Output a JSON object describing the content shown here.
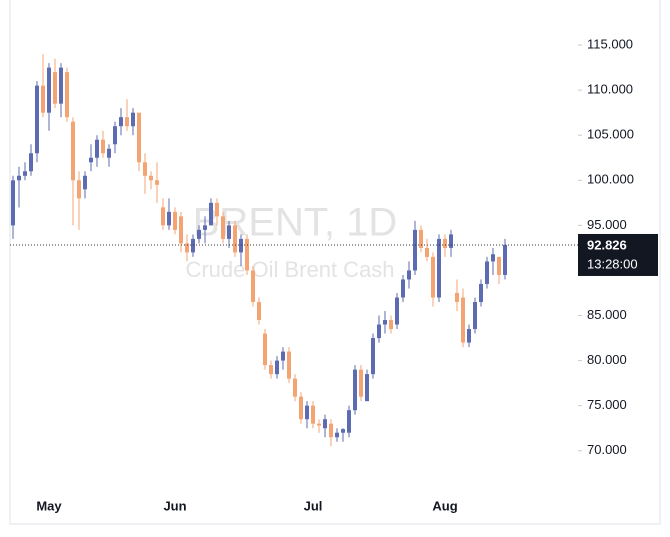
{
  "chart_data": {
    "type": "candlestick",
    "watermark_title": "BRENT, 1D",
    "watermark_subtitle": "Crude Oil Brent Cash",
    "up_color": "#5d6cb2",
    "down_color": "#f4a373",
    "categories": [
      null,
      null,
      null,
      null,
      null,
      null,
      "May",
      null,
      null,
      null,
      null,
      null,
      null,
      null,
      null,
      null,
      null,
      null,
      null,
      null,
      null,
      null,
      null,
      null,
      null,
      null,
      null,
      "Jun",
      null,
      null,
      null,
      null,
      null,
      null,
      null,
      null,
      null,
      null,
      null,
      null,
      null,
      null,
      null,
      null,
      null,
      null,
      null,
      null,
      null,
      null,
      "Jul",
      null,
      null,
      null,
      null,
      null,
      null,
      null,
      null,
      null,
      null,
      null,
      null,
      null,
      null,
      null,
      null,
      null,
      null,
      null,
      null,
      null,
      "Aug",
      null,
      null,
      null,
      null,
      null,
      null,
      null,
      null,
      null,
      null
    ],
    "open": [
      95,
      100,
      100.5,
      101,
      103,
      110.5,
      107.5,
      112,
      108.5,
      112,
      106.5,
      100,
      99,
      102,
      102.5,
      104.5,
      102.5,
      104,
      106,
      107,
      106,
      107.5,
      102,
      100.5,
      100,
      97,
      95,
      96.5,
      96,
      93,
      92,
      93.5,
      94.5,
      95,
      97.5,
      96,
      93.5,
      95,
      92,
      93.5,
      90,
      86.5,
      83,
      79.5,
      78.5,
      80,
      81,
      78,
      76,
      73.5,
      75,
      73,
      72.5,
      73,
      71.5,
      72,
      72,
      74.5,
      79,
      75.5,
      78.5,
      82.5,
      84,
      84.5,
      84,
      87,
      89,
      90,
      94.5,
      92.5,
      91.5,
      87,
      93.5,
      92.5,
      87.5,
      87,
      82,
      83.5,
      86.5,
      88.5,
      91,
      91.5,
      89.5
    ],
    "high": [
      100.5,
      101.5,
      102,
      104,
      111,
      114,
      113,
      113.5,
      113,
      112.5,
      107,
      101,
      101,
      104,
      105,
      105.5,
      104,
      106.5,
      108,
      109,
      108,
      107.5,
      103,
      101,
      102,
      98,
      98,
      97,
      96.5,
      94,
      94,
      95,
      96,
      98,
      98,
      96.5,
      95.5,
      95.5,
      94,
      94,
      90.5,
      87,
      83.5,
      80,
      80.5,
      81.5,
      81.5,
      78.5,
      76.5,
      75.5,
      75.5,
      73.5,
      74,
      73.5,
      72.5,
      72.5,
      75,
      79.5,
      79.5,
      79,
      83,
      85,
      85.5,
      85,
      87.5,
      89.5,
      91,
      95.5,
      95,
      93.5,
      92,
      94,
      94,
      94.5,
      89,
      88,
      84,
      87,
      89,
      91.5,
      92.5,
      91.5,
      93.5
    ],
    "low": [
      93.5,
      97,
      100,
      100.5,
      102,
      107,
      105.5,
      108,
      107,
      106.5,
      95,
      94.5,
      98,
      101,
      101.5,
      102.5,
      101.5,
      103,
      105,
      105.5,
      105,
      101,
      98.5,
      99,
      97.5,
      94.5,
      94.5,
      94,
      92,
      91,
      91.5,
      93,
      93,
      95,
      95,
      93,
      92.5,
      91.5,
      90.5,
      89.5,
      86,
      84,
      79,
      78,
      78,
      79,
      77.5,
      75.5,
      73,
      72.5,
      72.5,
      72,
      71.5,
      70.5,
      71,
      71,
      71.5,
      74,
      75.5,
      75.5,
      78,
      82,
      83,
      83,
      83.5,
      86.5,
      88,
      89.5,
      92,
      91,
      86,
      86.5,
      91.5,
      91.5,
      85.5,
      81.5,
      81.5,
      83,
      86,
      88,
      89.5,
      88.5,
      89
    ],
    "close": [
      100,
      100.5,
      101,
      103,
      110.5,
      107.5,
      112.5,
      108.5,
      112.5,
      107,
      100,
      98,
      100.5,
      102.5,
      104.5,
      103,
      103.5,
      106,
      107,
      106,
      107.5,
      102,
      100.5,
      100,
      99.5,
      95,
      96.5,
      94.5,
      93,
      92,
      93.5,
      94.5,
      95,
      97.5,
      96,
      93.5,
      95,
      92,
      93.5,
      90,
      86.5,
      84.5,
      79.5,
      78.5,
      80,
      81,
      78,
      76,
      73.5,
      75,
      73,
      72.8,
      73.5,
      71.5,
      72,
      72.4,
      74.5,
      79,
      76,
      78.5,
      82.5,
      84,
      84.5,
      83.5,
      87,
      89,
      90,
      94.5,
      92.5,
      91.5,
      87,
      93.5,
      92.5,
      94,
      86.5,
      82,
      83.5,
      86.5,
      88.5,
      91,
      91.8,
      89.5,
      92.826
    ],
    "ylim": [
      66.2,
      120
    ],
    "yticks": [
      {
        "value": 70,
        "label": "70.000"
      },
      {
        "value": 75,
        "label": "75.000"
      },
      {
        "value": 80,
        "label": "80.000"
      },
      {
        "value": 85,
        "label": "85.000"
      },
      {
        "value": 90,
        "label": "90.000"
      },
      {
        "value": 95,
        "label": "95.000"
      },
      {
        "value": 100,
        "label": "100.000"
      },
      {
        "value": 105,
        "label": "105.000"
      },
      {
        "value": 110,
        "label": "110.000"
      },
      {
        "value": 115,
        "label": "115.000"
      }
    ],
    "last_price": 92.826,
    "last_price_time": "13:28:00"
  }
}
